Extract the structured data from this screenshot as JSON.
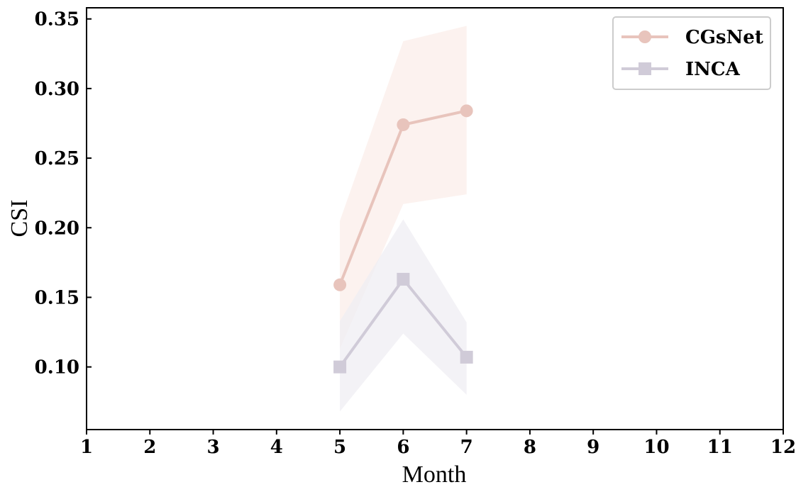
{
  "chart_data": {
    "type": "line",
    "xlabel": "Month",
    "ylabel": "CSI",
    "xlim": [
      1,
      12
    ],
    "ylim": [
      0.055,
      0.358
    ],
    "xticks": [
      1,
      2,
      3,
      4,
      5,
      6,
      7,
      8,
      9,
      10,
      11,
      12
    ],
    "yticks": [
      0.1,
      0.15,
      0.2,
      0.25,
      0.3,
      0.35
    ],
    "grid": false,
    "legend_position": "top-right",
    "series": [
      {
        "name": "CGsNet",
        "marker": "circle",
        "color": "#e8c4bc",
        "band_color": "#fbeeea",
        "x": [
          5,
          6,
          7
        ],
        "y": [
          0.159,
          0.274,
          0.284
        ],
        "lower": [
          0.113,
          0.217,
          0.224
        ],
        "upper": [
          0.205,
          0.334,
          0.345
        ]
      },
      {
        "name": "INCA",
        "marker": "square",
        "color": "#d0cbd8",
        "band_color": "#efeef3",
        "x": [
          5,
          6,
          7
        ],
        "y": [
          0.1,
          0.163,
          0.107
        ],
        "lower": [
          0.068,
          0.124,
          0.08
        ],
        "upper": [
          0.133,
          0.206,
          0.132
        ]
      }
    ]
  }
}
